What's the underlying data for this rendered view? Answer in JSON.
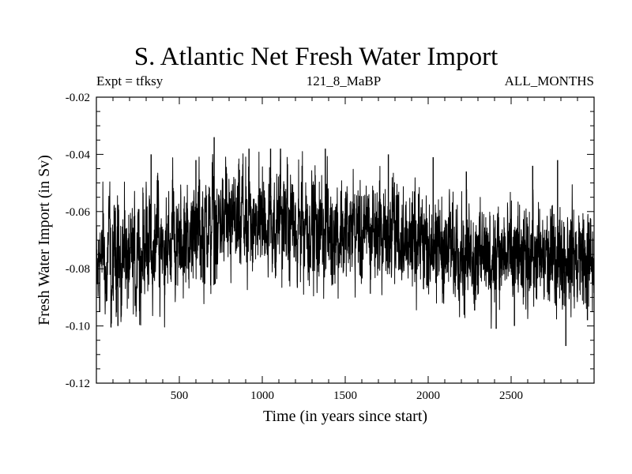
{
  "chart_data": {
    "type": "line",
    "title": "S. Atlantic Net Fresh Water Import",
    "subtitle_left": "Expt = tfksy",
    "subtitle_center": "121_8_MaBP",
    "subtitle_right": "ALL_MONTHS",
    "xlabel": "Time (in years since start)",
    "ylabel": "Fresh Water Import (in Sv)",
    "xlim": [
      0,
      3000
    ],
    "ylim": [
      -0.12,
      -0.02
    ],
    "x_ticks": [
      500,
      1000,
      1500,
      2000,
      2500
    ],
    "y_ticks": [
      -0.02,
      -0.04,
      -0.06,
      -0.08,
      -0.1,
      -0.12
    ],
    "x_tick_labels": [
      "500",
      "1000",
      "1500",
      "2000",
      "2500"
    ],
    "y_tick_labels": [
      "-0.02",
      "-0.04",
      "-0.06",
      "-0.08",
      "-0.10",
      "-0.12"
    ],
    "grid": false,
    "series": [
      {
        "name": "fresh water import",
        "color": "#000000",
        "x_step": 10,
        "x_start": 0,
        "values": [
          -0.078,
          -0.084,
          -0.07,
          -0.081,
          -0.066,
          -0.079,
          -0.088,
          -0.073,
          -0.06,
          -0.094,
          -0.077,
          -0.069,
          -0.082,
          -0.058,
          -0.08,
          -0.091,
          -0.072,
          -0.064,
          -0.083,
          -0.075,
          -0.086,
          -0.068,
          -0.079,
          -0.071,
          -0.09,
          -0.062,
          -0.076,
          -0.084,
          -0.07,
          -0.073,
          -0.066,
          -0.081,
          -0.058,
          -0.077,
          -0.085,
          -0.069,
          -0.074,
          -0.052,
          -0.08,
          -0.067,
          -0.071,
          -0.083,
          -0.063,
          -0.076,
          -0.069,
          -0.078,
          -0.056,
          -0.073,
          -0.081,
          -0.065,
          -0.07,
          -0.06,
          -0.077,
          -0.068,
          -0.074,
          -0.059,
          -0.082,
          -0.064,
          -0.071,
          -0.055,
          -0.076,
          -0.066,
          -0.058,
          -0.073,
          -0.062,
          -0.079,
          -0.057,
          -0.068,
          -0.061,
          -0.075,
          -0.051,
          -0.07,
          -0.063,
          -0.077,
          -0.057,
          -0.066,
          -0.06,
          -0.072,
          -0.048,
          -0.069,
          -0.058,
          -0.074,
          -0.062,
          -0.054,
          -0.071,
          -0.064,
          -0.059,
          -0.073,
          -0.05,
          -0.067,
          -0.061,
          -0.076,
          -0.056,
          -0.065,
          -0.07,
          -0.058,
          -0.063,
          -0.072,
          -0.053,
          -0.068,
          -0.06,
          -0.066,
          -0.057,
          -0.074,
          -0.062,
          -0.055,
          -0.069,
          -0.061,
          -0.078,
          -0.058,
          -0.065,
          -0.052,
          -0.07,
          -0.06,
          -0.067,
          -0.056,
          -0.073,
          -0.063,
          -0.058,
          -0.071,
          -0.064,
          -0.082,
          -0.06,
          -0.068,
          -0.055,
          -0.072,
          -0.062,
          -0.059,
          -0.075,
          -0.066,
          -0.061,
          -0.07,
          -0.057,
          -0.079,
          -0.064,
          -0.068,
          -0.06,
          -0.073,
          -0.067,
          -0.058,
          -0.071,
          -0.063,
          -0.076,
          -0.065,
          -0.07,
          -0.061,
          -0.074,
          -0.068,
          -0.062,
          -0.072,
          -0.066,
          -0.06,
          -0.075,
          -0.064,
          -0.07,
          -0.057,
          -0.073,
          -0.067,
          -0.061,
          -0.069,
          -0.074,
          -0.063,
          -0.071,
          -0.066,
          -0.059,
          -0.076,
          -0.068,
          -0.062,
          -0.072,
          -0.065,
          -0.07,
          -0.058,
          -0.074,
          -0.067,
          -0.063,
          -0.078,
          -0.069,
          -0.064,
          -0.071,
          -0.055,
          -0.073,
          -0.066,
          -0.061,
          -0.075,
          -0.069,
          -0.065,
          -0.072,
          -0.068,
          -0.077,
          -0.063,
          -0.07,
          -0.074,
          -0.066,
          -0.08,
          -0.069,
          -0.072,
          -0.064,
          -0.076,
          -0.071,
          -0.067,
          -0.073,
          -0.078,
          -0.068,
          -0.075,
          -0.07,
          -0.082,
          -0.066,
          -0.074,
          -0.071,
          -0.077,
          -0.069,
          -0.079,
          -0.073,
          -0.065,
          -0.076,
          -0.072,
          -0.081,
          -0.068,
          -0.074,
          -0.078,
          -0.07,
          -0.076,
          -0.083,
          -0.071,
          -0.079,
          -0.066,
          -0.075,
          -0.073,
          -0.085,
          -0.07,
          -0.077,
          -0.072,
          -0.08,
          -0.068,
          -0.076,
          -0.074,
          -0.079,
          -0.071,
          -0.083,
          -0.075,
          -0.072,
          -0.078,
          -0.067,
          -0.081,
          -0.074,
          -0.077,
          -0.07,
          -0.08,
          -0.073,
          -0.076,
          -0.069,
          -0.082,
          -0.075,
          -0.078,
          -0.071,
          -0.079,
          -0.074,
          -0.087,
          -0.072,
          -0.077,
          -0.08,
          -0.073,
          -0.076,
          -0.07,
          -0.081,
          -0.075,
          -0.078,
          -0.072,
          -0.079,
          -0.074,
          -0.083,
          -0.071,
          -0.077,
          -0.08,
          -0.073,
          -0.076,
          -0.069,
          -0.082,
          -0.075,
          -0.078,
          -0.071,
          -0.079,
          -0.074,
          -0.081,
          -0.072,
          -0.077,
          -0.08,
          -0.068,
          -0.078,
          -0.075,
          -0.082,
          -0.07,
          -0.079,
          -0.073,
          -0.076,
          -0.084,
          -0.072,
          -0.078,
          -0.075,
          -0.08
        ],
        "spikes": [
          {
            "x": 20,
            "value": -0.095
          },
          {
            "x": 130,
            "value": -0.1
          },
          {
            "x": 330,
            "value": -0.04
          },
          {
            "x": 600,
            "value": -0.042
          },
          {
            "x": 710,
            "value": -0.034
          },
          {
            "x": 920,
            "value": -0.038
          },
          {
            "x": 1050,
            "value": -0.038
          },
          {
            "x": 1110,
            "value": -0.038
          },
          {
            "x": 1240,
            "value": -0.044
          },
          {
            "x": 1380,
            "value": -0.038
          },
          {
            "x": 1760,
            "value": -0.04
          },
          {
            "x": 2030,
            "value": -0.041
          },
          {
            "x": 2230,
            "value": -0.046
          },
          {
            "x": 2410,
            "value": -0.101
          },
          {
            "x": 2520,
            "value": -0.1
          },
          {
            "x": 2630,
            "value": -0.044
          },
          {
            "x": 2780,
            "value": -0.042
          },
          {
            "x": 2830,
            "value": -0.107
          },
          {
            "x": 2960,
            "value": -0.098
          }
        ]
      }
    ]
  }
}
